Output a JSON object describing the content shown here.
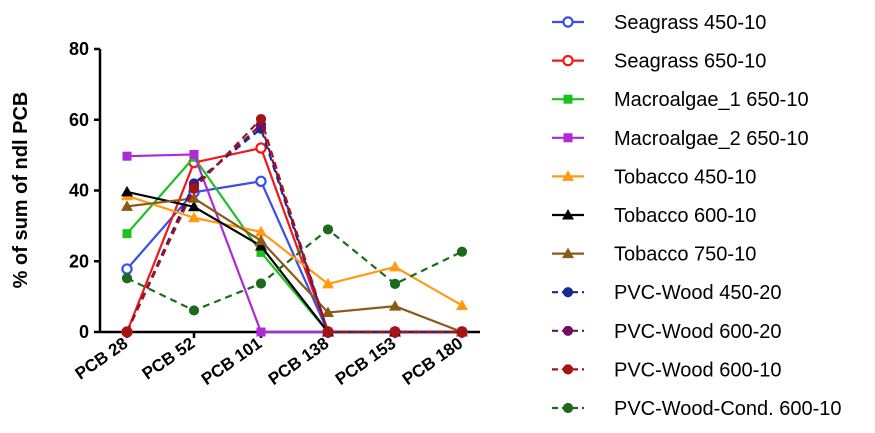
{
  "chart_data": {
    "type": "line",
    "title": "",
    "xlabel": "",
    "ylabel": "% of sum of ndl PCB",
    "categories": [
      "PCB 28",
      "PCB 52",
      "PCB 101",
      "PCB 138",
      "PCB 153",
      "PCB 180"
    ],
    "ylim": [
      0,
      80
    ],
    "yticks": [
      0,
      20,
      40,
      60,
      80
    ],
    "grid": false,
    "legend_position": "right",
    "series": [
      {
        "name": "Seagrass 450-10",
        "color": "#3a4ee8",
        "marker": "circle-open",
        "dash": false,
        "values": [
          17.8,
          39.5,
          42.6,
          0,
          0,
          0
        ]
      },
      {
        "name": "Seagrass 650-10",
        "color": "#f01818",
        "marker": "circle-open",
        "dash": false,
        "values": [
          0,
          47.9,
          52.0,
          0,
          0,
          0
        ]
      },
      {
        "name": "Macroalgae_1 650-10",
        "color": "#1ec01e",
        "marker": "square",
        "dash": false,
        "values": [
          27.8,
          49.4,
          22.5,
          0,
          0,
          0
        ]
      },
      {
        "name": "Macroalgae_2 650-10",
        "color": "#b128d8",
        "marker": "square",
        "dash": false,
        "values": [
          49.7,
          50.2,
          0,
          0,
          0,
          0
        ]
      },
      {
        "name": "Tobacco 450-10",
        "color": "#ff9a12",
        "marker": "triangle",
        "dash": false,
        "values": [
          38.5,
          32.3,
          28.3,
          13.6,
          18.4,
          7.5
        ]
      },
      {
        "name": "Tobacco 600-10",
        "color": "#000000",
        "marker": "triangle",
        "dash": false,
        "values": [
          39.6,
          35.4,
          24.3,
          0,
          0,
          0
        ]
      },
      {
        "name": "Tobacco 750-10",
        "color": "#8b5a16",
        "marker": "triangle",
        "dash": false,
        "values": [
          35.5,
          37.8,
          25.8,
          5.5,
          7.3,
          0
        ]
      },
      {
        "name": "PVC-Wood 450-20",
        "color": "#142a8c",
        "marker": "circle",
        "dash": true,
        "values": [
          0,
          42.0,
          57.5,
          0,
          0,
          0
        ]
      },
      {
        "name": "PVC-Wood 600-20",
        "color": "#6e1160",
        "marker": "circle",
        "dash": true,
        "values": [
          0,
          41.2,
          58.6,
          0,
          0,
          0
        ]
      },
      {
        "name": "PVC-Wood 600-10",
        "color": "#a51414",
        "marker": "circle",
        "dash": true,
        "values": [
          0,
          40.5,
          60.2,
          0,
          0,
          0
        ]
      },
      {
        "name": "PVC-Wood-Cond. 600-10",
        "color": "#1c6b1c",
        "marker": "circle",
        "dash": true,
        "values": [
          15.2,
          6.1,
          13.7,
          29.0,
          13.6,
          22.7
        ]
      }
    ]
  }
}
